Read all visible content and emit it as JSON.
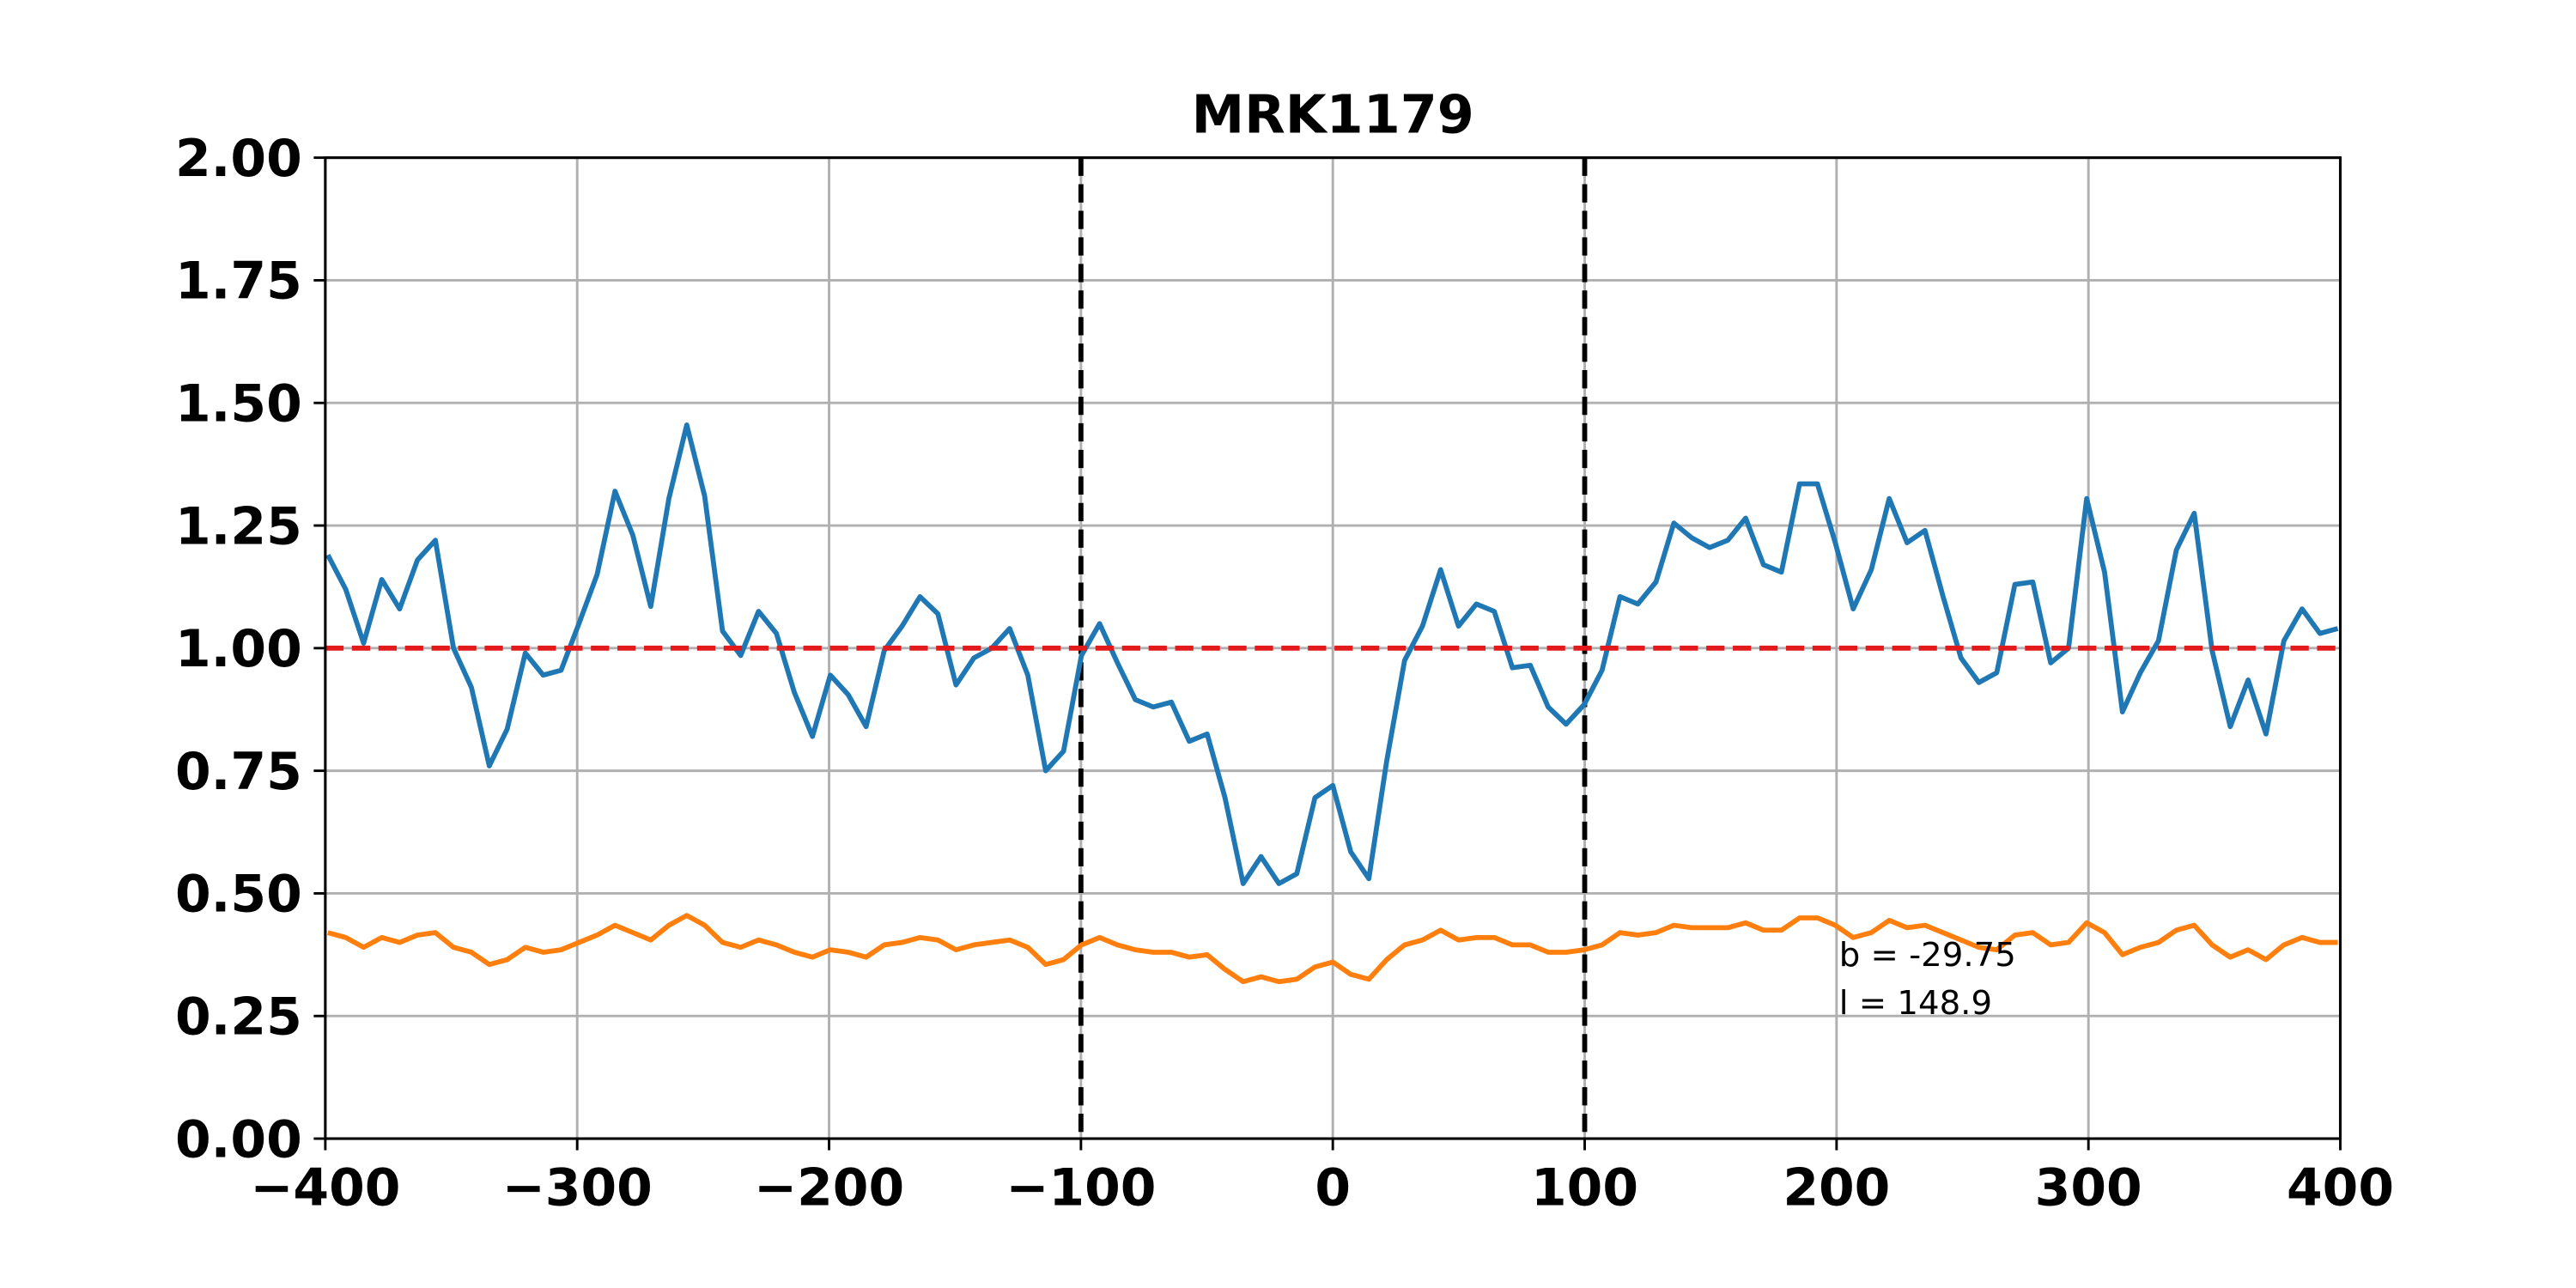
{
  "chart_data": {
    "type": "line",
    "title": "MRK1179",
    "x": [
      -399,
      -391.9,
      -384.8,
      -377.6,
      -370.5,
      -363.4,
      -356.3,
      -349.1,
      -342,
      -334.9,
      -327.8,
      -320.6,
      -313.5,
      -306.4,
      -299.3,
      -292.1,
      -285,
      -277.9,
      -270.8,
      -263.6,
      -256.5,
      -249.4,
      -242.3,
      -235.1,
      -228,
      -220.9,
      -213.8,
      -206.6,
      -199.5,
      -192.4,
      -185.3,
      -178.1,
      -171,
      -163.9,
      -156.8,
      -149.6,
      -142.5,
      -135.4,
      -128.3,
      -121.1,
      -114,
      -106.9,
      -99.8,
      -92.6,
      -85.5,
      -78.4,
      -71.3,
      -64.1,
      -57,
      -49.9,
      -42.8,
      -35.6,
      -28.5,
      -21.4,
      -14.3,
      -7.1,
      0,
      7.1,
      14.3,
      21.4,
      28.5,
      35.6,
      42.8,
      49.9,
      57,
      64.1,
      71.3,
      78.4,
      85.5,
      92.6,
      99.8,
      106.9,
      114,
      121.1,
      128.3,
      135.4,
      142.5,
      149.6,
      156.8,
      163.9,
      171,
      178.1,
      185.3,
      192.4,
      199.5,
      206.6,
      213.8,
      220.9,
      228,
      235.1,
      242.3,
      249.4,
      256.5,
      263.6,
      270.8,
      277.9,
      285,
      292.1,
      299.3,
      306.4,
      313.5,
      320.6,
      327.8,
      334.9,
      342,
      349.1,
      356.3,
      363.4,
      370.5,
      377.6,
      384.8,
      391.9,
      399
    ],
    "series": [
      {
        "color": "#1f77b4",
        "values": [
          1.19,
          1.12,
          1.01,
          1.14,
          1.08,
          1.18,
          1.22,
          1.0,
          0.92,
          0.76,
          0.835,
          0.99,
          0.945,
          0.955,
          1.05,
          1.15,
          1.32,
          1.23,
          1.085,
          1.305,
          1.455,
          1.31,
          1.035,
          0.985,
          1.075,
          1.03,
          0.91,
          0.82,
          0.945,
          0.905,
          0.84,
          0.995,
          1.045,
          1.105,
          1.07,
          0.925,
          0.98,
          1.0,
          1.04,
          0.945,
          0.75,
          0.79,
          0.985,
          1.05,
          0.97,
          0.895,
          0.88,
          0.89,
          0.81,
          0.825,
          0.695,
          0.52,
          0.575,
          0.52,
          0.54,
          0.695,
          0.72,
          0.585,
          0.53,
          0.77,
          0.975,
          1.045,
          1.16,
          1.045,
          1.09,
          1.075,
          0.96,
          0.965,
          0.88,
          0.845,
          0.885,
          0.955,
          1.105,
          1.09,
          1.135,
          1.255,
          1.225,
          1.205,
          1.22,
          1.265,
          1.17,
          1.155,
          1.335,
          1.335,
          1.215,
          1.08,
          1.16,
          1.305,
          1.215,
          1.24,
          1.105,
          0.98,
          0.93,
          0.95,
          1.13,
          1.135,
          0.97,
          1.0,
          1.305,
          1.155,
          0.87,
          0.95,
          1.015,
          1.2,
          1.275,
          0.995,
          0.84,
          0.935,
          0.825,
          1.015,
          1.08,
          1.03,
          1.04
        ]
      },
      {
        "color": "#ff7f0e",
        "values": [
          0.42,
          0.41,
          0.39,
          0.41,
          0.4,
          0.415,
          0.42,
          0.39,
          0.38,
          0.355,
          0.365,
          0.39,
          0.38,
          0.385,
          0.4,
          0.415,
          0.435,
          0.42,
          0.405,
          0.435,
          0.455,
          0.435,
          0.4,
          0.39,
          0.405,
          0.395,
          0.38,
          0.37,
          0.385,
          0.38,
          0.37,
          0.395,
          0.4,
          0.41,
          0.405,
          0.385,
          0.395,
          0.4,
          0.405,
          0.39,
          0.355,
          0.365,
          0.395,
          0.41,
          0.395,
          0.385,
          0.38,
          0.38,
          0.37,
          0.375,
          0.345,
          0.32,
          0.33,
          0.32,
          0.325,
          0.35,
          0.36,
          0.335,
          0.325,
          0.365,
          0.395,
          0.405,
          0.425,
          0.405,
          0.41,
          0.41,
          0.395,
          0.395,
          0.38,
          0.38,
          0.385,
          0.395,
          0.42,
          0.415,
          0.42,
          0.435,
          0.43,
          0.43,
          0.43,
          0.44,
          0.425,
          0.425,
          0.45,
          0.45,
          0.435,
          0.41,
          0.42,
          0.445,
          0.43,
          0.435,
          0.42,
          0.405,
          0.39,
          0.385,
          0.415,
          0.42,
          0.395,
          0.4,
          0.44,
          0.42,
          0.375,
          0.39,
          0.4,
          0.425,
          0.435,
          0.395,
          0.37,
          0.385,
          0.365,
          0.395,
          0.41,
          0.4,
          0.4
        ]
      }
    ],
    "hline": {
      "value": 1,
      "color": "#e31a1c"
    },
    "vlines": {
      "values": [
        -100,
        100
      ],
      "color": "#000000"
    },
    "annotations": [
      "b = -29.75",
      "l = 148.9"
    ],
    "xlim": [
      -400,
      400
    ],
    "ylim": [
      0,
      2
    ],
    "xticks": [
      {
        "value": -400,
        "label": "−400"
      },
      {
        "value": -300,
        "label": "−300"
      },
      {
        "value": -200,
        "label": "−200"
      },
      {
        "value": -100,
        "label": "−100"
      },
      0,
      100,
      200,
      300,
      400
    ],
    "yticks": [
      {
        "value": 0,
        "label": "0.00"
      },
      {
        "value": 0.25,
        "label": "0.25"
      },
      {
        "value": 0.5,
        "label": "0.50"
      },
      {
        "value": 0.75,
        "label": "0.75"
      },
      {
        "value": 1,
        "label": "1.00"
      },
      {
        "value": 1.25,
        "label": "1.25"
      },
      {
        "value": 1.5,
        "label": "1.50"
      },
      {
        "value": 1.75,
        "label": "1.75"
      },
      {
        "value": 2,
        "label": "2.00"
      }
    ],
    "grid": true
  }
}
